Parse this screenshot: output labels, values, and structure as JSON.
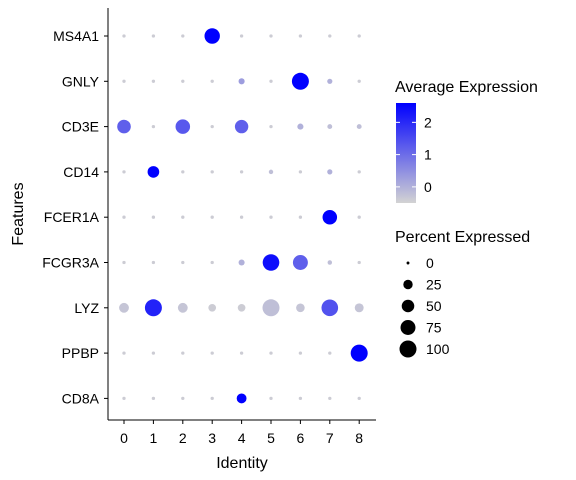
{
  "chart_data": {
    "type": "scatter",
    "xlabel": "Identity",
    "ylabel": "Features",
    "x_categories": [
      "0",
      "1",
      "2",
      "3",
      "4",
      "5",
      "6",
      "7",
      "8"
    ],
    "y_categories": [
      "MS4A1",
      "GNLY",
      "CD3E",
      "CD14",
      "FCER1A",
      "FCGR3A",
      "LYZ",
      "PPBP",
      "CD8A"
    ],
    "points": [
      {
        "gene": "MS4A1",
        "identity": "0",
        "avg_exp": -0.4,
        "pct": 1
      },
      {
        "gene": "MS4A1",
        "identity": "1",
        "avg_exp": -0.4,
        "pct": 1
      },
      {
        "gene": "MS4A1",
        "identity": "2",
        "avg_exp": -0.4,
        "pct": 1
      },
      {
        "gene": "MS4A1",
        "identity": "3",
        "avg_exp": 2.6,
        "pct": 80
      },
      {
        "gene": "MS4A1",
        "identity": "4",
        "avg_exp": -0.4,
        "pct": 1
      },
      {
        "gene": "MS4A1",
        "identity": "5",
        "avg_exp": -0.4,
        "pct": 1
      },
      {
        "gene": "MS4A1",
        "identity": "6",
        "avg_exp": -0.4,
        "pct": 1
      },
      {
        "gene": "MS4A1",
        "identity": "7",
        "avg_exp": -0.4,
        "pct": 1
      },
      {
        "gene": "MS4A1",
        "identity": "8",
        "avg_exp": -0.4,
        "pct": 1
      },
      {
        "gene": "GNLY",
        "identity": "0",
        "avg_exp": -0.4,
        "pct": 1
      },
      {
        "gene": "GNLY",
        "identity": "1",
        "avg_exp": -0.4,
        "pct": 1
      },
      {
        "gene": "GNLY",
        "identity": "2",
        "avg_exp": -0.4,
        "pct": 1
      },
      {
        "gene": "GNLY",
        "identity": "3",
        "avg_exp": -0.4,
        "pct": 1
      },
      {
        "gene": "GNLY",
        "identity": "4",
        "avg_exp": 0.3,
        "pct": 8
      },
      {
        "gene": "GNLY",
        "identity": "5",
        "avg_exp": -0.4,
        "pct": 1
      },
      {
        "gene": "GNLY",
        "identity": "6",
        "avg_exp": 2.6,
        "pct": 100
      },
      {
        "gene": "GNLY",
        "identity": "7",
        "avg_exp": 0.0,
        "pct": 5
      },
      {
        "gene": "GNLY",
        "identity": "8",
        "avg_exp": -0.4,
        "pct": 1
      },
      {
        "gene": "CD3E",
        "identity": "0",
        "avg_exp": 1.2,
        "pct": 60
      },
      {
        "gene": "CD3E",
        "identity": "1",
        "avg_exp": -0.4,
        "pct": 1
      },
      {
        "gene": "CD3E",
        "identity": "2",
        "avg_exp": 1.3,
        "pct": 70
      },
      {
        "gene": "CD3E",
        "identity": "3",
        "avg_exp": -0.4,
        "pct": 1
      },
      {
        "gene": "CD3E",
        "identity": "4",
        "avg_exp": 1.2,
        "pct": 58
      },
      {
        "gene": "CD3E",
        "identity": "5",
        "avg_exp": -0.4,
        "pct": 1
      },
      {
        "gene": "CD3E",
        "identity": "6",
        "avg_exp": 0.0,
        "pct": 8
      },
      {
        "gene": "CD3E",
        "identity": "7",
        "avg_exp": -0.2,
        "pct": 4
      },
      {
        "gene": "CD3E",
        "identity": "8",
        "avg_exp": -0.2,
        "pct": 4
      },
      {
        "gene": "CD14",
        "identity": "0",
        "avg_exp": -0.4,
        "pct": 1
      },
      {
        "gene": "CD14",
        "identity": "1",
        "avg_exp": 2.6,
        "pct": 42
      },
      {
        "gene": "CD14",
        "identity": "2",
        "avg_exp": -0.4,
        "pct": 1
      },
      {
        "gene": "CD14",
        "identity": "3",
        "avg_exp": -0.4,
        "pct": 1
      },
      {
        "gene": "CD14",
        "identity": "4",
        "avg_exp": -0.4,
        "pct": 1
      },
      {
        "gene": "CD14",
        "identity": "5",
        "avg_exp": -0.2,
        "pct": 3
      },
      {
        "gene": "CD14",
        "identity": "6",
        "avg_exp": -0.4,
        "pct": 1
      },
      {
        "gene": "CD14",
        "identity": "7",
        "avg_exp": 0.0,
        "pct": 5
      },
      {
        "gene": "CD14",
        "identity": "8",
        "avg_exp": -0.4,
        "pct": 1
      },
      {
        "gene": "FCER1A",
        "identity": "0",
        "avg_exp": -0.4,
        "pct": 1
      },
      {
        "gene": "FCER1A",
        "identity": "1",
        "avg_exp": -0.4,
        "pct": 1
      },
      {
        "gene": "FCER1A",
        "identity": "2",
        "avg_exp": -0.4,
        "pct": 1
      },
      {
        "gene": "FCER1A",
        "identity": "3",
        "avg_exp": -0.4,
        "pct": 1
      },
      {
        "gene": "FCER1A",
        "identity": "4",
        "avg_exp": -0.4,
        "pct": 1
      },
      {
        "gene": "FCER1A",
        "identity": "5",
        "avg_exp": -0.4,
        "pct": 1
      },
      {
        "gene": "FCER1A",
        "identity": "6",
        "avg_exp": -0.4,
        "pct": 1
      },
      {
        "gene": "FCER1A",
        "identity": "7",
        "avg_exp": 2.6,
        "pct": 70
      },
      {
        "gene": "FCER1A",
        "identity": "8",
        "avg_exp": -0.4,
        "pct": 1
      },
      {
        "gene": "FCGR3A",
        "identity": "0",
        "avg_exp": -0.4,
        "pct": 1
      },
      {
        "gene": "FCGR3A",
        "identity": "1",
        "avg_exp": -0.4,
        "pct": 1
      },
      {
        "gene": "FCGR3A",
        "identity": "2",
        "avg_exp": -0.4,
        "pct": 1
      },
      {
        "gene": "FCGR3A",
        "identity": "3",
        "avg_exp": -0.4,
        "pct": 1
      },
      {
        "gene": "FCGR3A",
        "identity": "4",
        "avg_exp": 0.0,
        "pct": 8
      },
      {
        "gene": "FCGR3A",
        "identity": "5",
        "avg_exp": 2.4,
        "pct": 95
      },
      {
        "gene": "FCGR3A",
        "identity": "6",
        "avg_exp": 1.2,
        "pct": 75
      },
      {
        "gene": "FCGR3A",
        "identity": "7",
        "avg_exp": -0.2,
        "pct": 3
      },
      {
        "gene": "FCGR3A",
        "identity": "8",
        "avg_exp": -0.4,
        "pct": 1
      },
      {
        "gene": "LYZ",
        "identity": "0",
        "avg_exp": -0.3,
        "pct": 28
      },
      {
        "gene": "LYZ",
        "identity": "1",
        "avg_exp": 2.1,
        "pct": 100
      },
      {
        "gene": "LYZ",
        "identity": "2",
        "avg_exp": -0.3,
        "pct": 28
      },
      {
        "gene": "LYZ",
        "identity": "3",
        "avg_exp": -0.4,
        "pct": 15
      },
      {
        "gene": "LYZ",
        "identity": "4",
        "avg_exp": -0.4,
        "pct": 15
      },
      {
        "gene": "LYZ",
        "identity": "5",
        "avg_exp": -0.2,
        "pct": 100
      },
      {
        "gene": "LYZ",
        "identity": "6",
        "avg_exp": -0.3,
        "pct": 20
      },
      {
        "gene": "LYZ",
        "identity": "7",
        "avg_exp": 1.4,
        "pct": 95
      },
      {
        "gene": "LYZ",
        "identity": "8",
        "avg_exp": -0.3,
        "pct": 22
      },
      {
        "gene": "PPBP",
        "identity": "0",
        "avg_exp": -0.4,
        "pct": 1
      },
      {
        "gene": "PPBP",
        "identity": "1",
        "avg_exp": -0.4,
        "pct": 1
      },
      {
        "gene": "PPBP",
        "identity": "2",
        "avg_exp": -0.4,
        "pct": 1
      },
      {
        "gene": "PPBP",
        "identity": "3",
        "avg_exp": -0.4,
        "pct": 1
      },
      {
        "gene": "PPBP",
        "identity": "4",
        "avg_exp": -0.4,
        "pct": 1
      },
      {
        "gene": "PPBP",
        "identity": "5",
        "avg_exp": -0.4,
        "pct": 1
      },
      {
        "gene": "PPBP",
        "identity": "6",
        "avg_exp": -0.4,
        "pct": 1
      },
      {
        "gene": "PPBP",
        "identity": "7",
        "avg_exp": -0.4,
        "pct": 1
      },
      {
        "gene": "PPBP",
        "identity": "8",
        "avg_exp": 2.6,
        "pct": 100
      },
      {
        "gene": "CD8A",
        "identity": "0",
        "avg_exp": -0.4,
        "pct": 1
      },
      {
        "gene": "CD8A",
        "identity": "1",
        "avg_exp": -0.4,
        "pct": 1
      },
      {
        "gene": "CD8A",
        "identity": "2",
        "avg_exp": -0.4,
        "pct": 1
      },
      {
        "gene": "CD8A",
        "identity": "3",
        "avg_exp": -0.4,
        "pct": 1
      },
      {
        "gene": "CD8A",
        "identity": "4",
        "avg_exp": 2.6,
        "pct": 28
      },
      {
        "gene": "CD8A",
        "identity": "5",
        "avg_exp": -0.4,
        "pct": 1
      },
      {
        "gene": "CD8A",
        "identity": "6",
        "avg_exp": -0.4,
        "pct": 1
      },
      {
        "gene": "CD8A",
        "identity": "7",
        "avg_exp": -0.4,
        "pct": 1
      },
      {
        "gene": "CD8A",
        "identity": "8",
        "avg_exp": -0.4,
        "pct": 1
      }
    ],
    "color_legend": {
      "title": "Average Expression",
      "ticks": [
        0,
        1,
        2
      ],
      "range": [
        -0.5,
        2.6
      ],
      "color_low": "#d3d3d3",
      "color_high": "#0000ff"
    },
    "size_legend": {
      "title": "Percent Expressed",
      "values": [
        0,
        25,
        50,
        75,
        100
      ]
    },
    "grid": false,
    "legend_position": "right"
  }
}
